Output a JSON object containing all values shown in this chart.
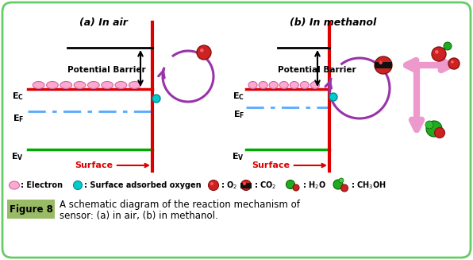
{
  "bg_color": "#ffffff",
  "border_color": "#66cc66",
  "fig_label_bg": "#99bb66",
  "red_color": "#dd0000",
  "green_color": "#00aa00",
  "blue_dash_color": "#55aaff",
  "purple_color": "#9933aa",
  "pink_electron_face": "#ffaacc",
  "pink_electron_edge": "#cc66aa",
  "teal_face": "#00cccc",
  "teal_edge": "#008899",
  "pink_arrow": "#ee99cc",
  "surface_color": "#dd0000",
  "panel_a_title": "(a) In air",
  "panel_b_title": "(b) In methanol",
  "potential_barrier_label": "Potential Barrier",
  "ec_label": "E",
  "ef_label": "E",
  "ev_label": "E",
  "surface_label": "Surface",
  "caption1": "A schematic diagram of the reaction mechanism of",
  "caption2": "sensor: (a) in air, (b) in methanol."
}
